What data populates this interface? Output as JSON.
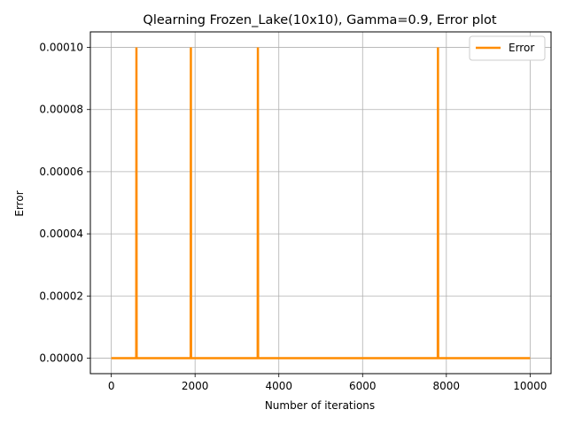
{
  "chart_data": {
    "type": "line",
    "title": "Qlearning Frozen_Lake(10x10),  Gamma=0.9, Error plot",
    "xlabel": "Number of iterations",
    "ylabel": "Error",
    "xlim": [
      -500,
      10500
    ],
    "ylim": [
      -5e-06,
      0.000105
    ],
    "xticks": [
      0,
      2000,
      4000,
      6000,
      8000,
      10000
    ],
    "xtick_labels": [
      "0",
      "2000",
      "4000",
      "6000",
      "8000",
      "10000"
    ],
    "yticks": [
      0,
      2e-05,
      4e-05,
      6e-05,
      8e-05,
      0.0001
    ],
    "ytick_labels": [
      "0.00000",
      "0.00002",
      "0.00004",
      "0.00006",
      "0.00008",
      "0.00010"
    ],
    "grid": true,
    "legend_position": "top-right",
    "series": [
      {
        "name": "Error",
        "color": "#ff8c00",
        "x": [
          0,
          595,
          600,
          605,
          1895,
          1900,
          1905,
          3495,
          3500,
          3505,
          7795,
          7800,
          7805,
          10000
        ],
        "y": [
          0,
          0,
          0.0001,
          0,
          0,
          0.0001,
          0,
          0,
          0.0001,
          0,
          0,
          0.0001,
          0,
          0
        ]
      }
    ]
  }
}
